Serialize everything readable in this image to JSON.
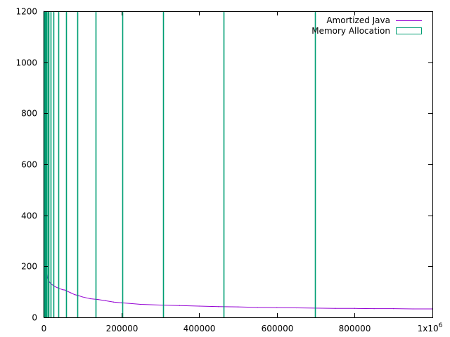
{
  "chart_data": {
    "type": "line",
    "title": "",
    "xlabel": "",
    "ylabel": "",
    "xlim": [
      0,
      1000000
    ],
    "ylim": [
      0,
      1200
    ],
    "grid": false,
    "legend_position": "top-right",
    "x_ticks": [
      {
        "value": 0,
        "label": "0"
      },
      {
        "value": 200000,
        "label": "200000"
      },
      {
        "value": 400000,
        "label": "400000"
      },
      {
        "value": 600000,
        "label": "600000"
      },
      {
        "value": 800000,
        "label": "800000"
      },
      {
        "value": 1000000,
        "label": "1x10",
        "exponent": "6"
      }
    ],
    "y_ticks": [
      {
        "value": 0,
        "label": "0"
      },
      {
        "value": 200,
        "label": "200"
      },
      {
        "value": 400,
        "label": "400"
      },
      {
        "value": 600,
        "label": "600"
      },
      {
        "value": 800,
        "label": "800"
      },
      {
        "value": 1000,
        "label": "1000"
      },
      {
        "value": 1200,
        "label": "1200"
      }
    ],
    "series": [
      {
        "name": "Amortized Java",
        "style": "line",
        "color": "#9400d3",
        "x": [
          1000,
          2000,
          3000,
          5000,
          7000,
          10000,
          15000,
          20000,
          30000,
          40000,
          50000,
          55000,
          60000,
          70000,
          80000,
          90000,
          100000,
          120000,
          140000,
          160000,
          180000,
          200000,
          250000,
          300000,
          350000,
          400000,
          450000,
          500000,
          550000,
          600000,
          650000,
          700000,
          750000,
          800000,
          850000,
          900000,
          950000,
          1000000
        ],
        "y": [
          1200,
          480,
          310,
          230,
          180,
          155,
          138,
          130,
          120,
          113,
          108,
          107,
          103,
          96,
          89,
          85,
          80,
          73,
          70,
          65,
          60,
          57,
          51,
          48,
          46,
          44,
          42,
          41,
          39,
          38,
          37,
          36,
          35,
          35,
          34,
          34,
          33,
          33
        ]
      },
      {
        "name": "Memory Allocation",
        "style": "impulses",
        "color": "#009e73",
        "x": [
          500,
          1000,
          2000,
          3000,
          4000,
          6000,
          8000,
          10000,
          13000,
          18000,
          26000,
          38000,
          57000,
          87000,
          133000,
          203000,
          307000,
          463000,
          698000
        ],
        "y": [
          1200,
          1200,
          1200,
          1200,
          1200,
          1200,
          1200,
          1200,
          1200,
          1200,
          1200,
          1200,
          1200,
          1200,
          1200,
          1200,
          1200,
          1200,
          1200
        ]
      }
    ]
  }
}
